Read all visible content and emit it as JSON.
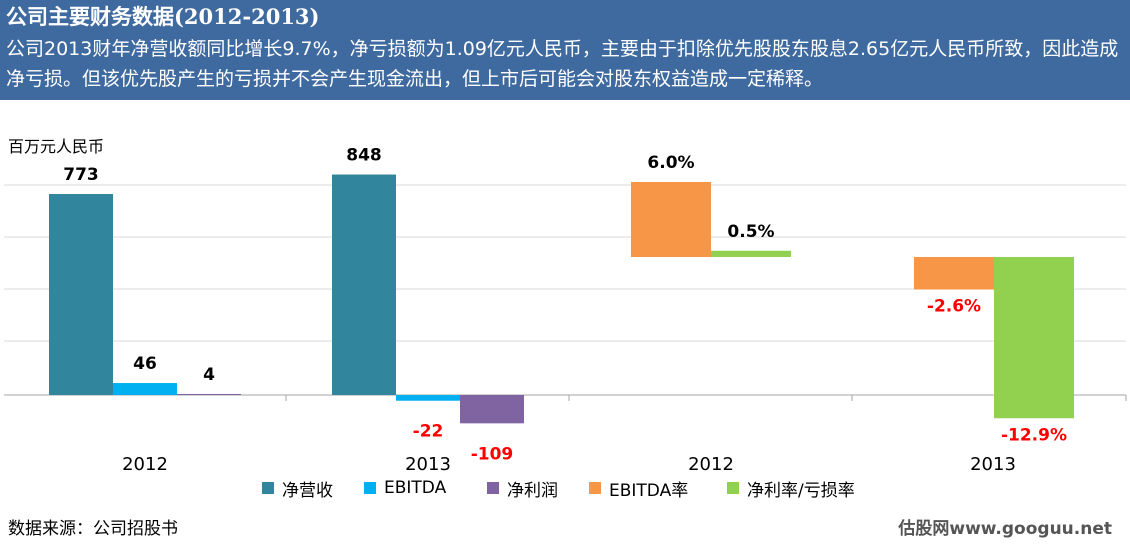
{
  "header": {
    "title": "公司主要财务数据(2012-2013)",
    "subtitle": "公司2013财年净营收额同比增长9.7%，净亏损额为1.09亿元人民币，主要由于扣除优先股股东股息2.65亿元人民币所致，因此造成净亏损。但该优先股产生的亏损并不会产生现金流出，但上市后可能会对股东权益造成一定稀释。"
  },
  "unit_label": "百万元人民币",
  "source": "数据来源：公司招股书",
  "watermark": "估股网www.googuu.net",
  "colors": {
    "net_revenue": "#31859c",
    "ebitda": "#00b0f0",
    "net_income": "#8064a2",
    "ebitda_margin": "#f79646",
    "net_margin": "#92d050",
    "negative_label": "#ff0000",
    "header_bg": "#3f6aa0"
  },
  "legend": [
    {
      "label": "净营收",
      "color": "#31859c"
    },
    {
      "label": "EBITDA",
      "color": "#00b0f0"
    },
    {
      "label": "净利润",
      "color": "#8064a2"
    },
    {
      "label": "EBITDA率",
      "color": "#f79646"
    },
    {
      "label": "净利率/亏损率",
      "color": "#92d050"
    }
  ],
  "chart_data": [
    {
      "type": "bar",
      "categories": [
        "2012",
        "2013"
      ],
      "series": [
        {
          "name": "净营收",
          "values": [
            773,
            848
          ],
          "labels": [
            "773",
            "848"
          ]
        },
        {
          "name": "EBITDA",
          "values": [
            46,
            -22
          ],
          "labels": [
            "46",
            "-22"
          ]
        },
        {
          "name": "净利润",
          "values": [
            4,
            -109
          ],
          "labels": [
            "4",
            "-109"
          ]
        }
      ],
      "ylabel": "百万元人民币",
      "grid": true
    },
    {
      "type": "bar",
      "categories": [
        "2012",
        "2013"
      ],
      "series": [
        {
          "name": "EBITDA率",
          "values": [
            6.0,
            -2.6
          ],
          "labels": [
            "6.0%",
            "-2.6%"
          ]
        },
        {
          "name": "净利率/亏损率",
          "values": [
            0.5,
            -12.9
          ],
          "labels": [
            "0.5%",
            "-12.9%"
          ]
        }
      ],
      "grid": true
    }
  ]
}
